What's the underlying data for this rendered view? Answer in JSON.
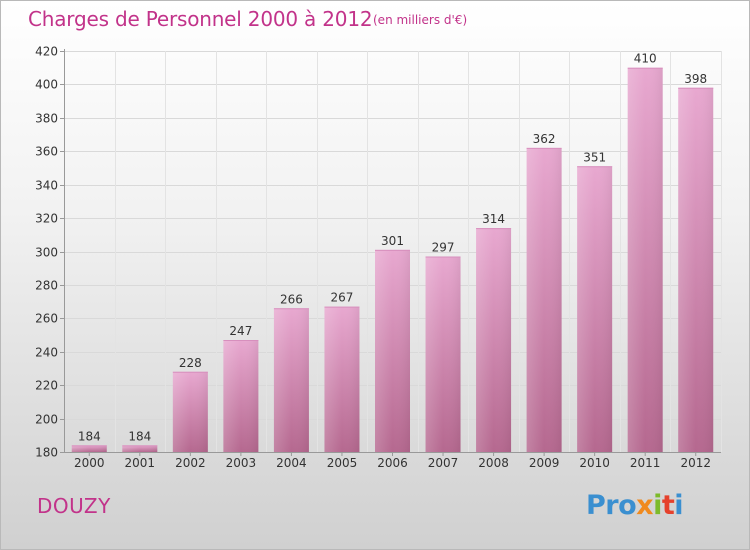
{
  "header": {
    "title": "Charges de Personnel 2000 à 2012",
    "subtitle": "(en milliers d'€)"
  },
  "footer": {
    "commune": "DOUZY",
    "logo_parts": [
      "Pro",
      "x",
      "i",
      "t",
      "i"
    ]
  },
  "colors": {
    "title": "#c2338a",
    "bar_top": "#e8a8d0",
    "bar_bottom": "#b5688f",
    "logo": [
      "#3a8fd0",
      "#f08a1e",
      "#7dbb2b",
      "#e5412c",
      "#3a8fd0"
    ]
  },
  "chart_data": {
    "type": "bar",
    "title": "Charges de Personnel 2000 à 2012",
    "subtitle": "(en milliers d'€)",
    "categories": [
      "2000",
      "2001",
      "2002",
      "2003",
      "2004",
      "2005",
      "2006",
      "2007",
      "2008",
      "2009",
      "2010",
      "2011",
      "2012"
    ],
    "values": [
      184,
      184,
      228,
      247,
      266,
      267,
      301,
      297,
      314,
      362,
      351,
      410,
      398
    ],
    "data_labels": [
      "184",
      "184",
      "228",
      "247",
      "266",
      "267",
      "301",
      "297",
      "314",
      "362",
      "351",
      "410",
      "398"
    ],
    "ylim": [
      180,
      420
    ],
    "yticks": [
      180,
      200,
      220,
      240,
      260,
      280,
      300,
      320,
      340,
      360,
      380,
      400,
      420
    ],
    "grid": true,
    "legend": "none"
  }
}
